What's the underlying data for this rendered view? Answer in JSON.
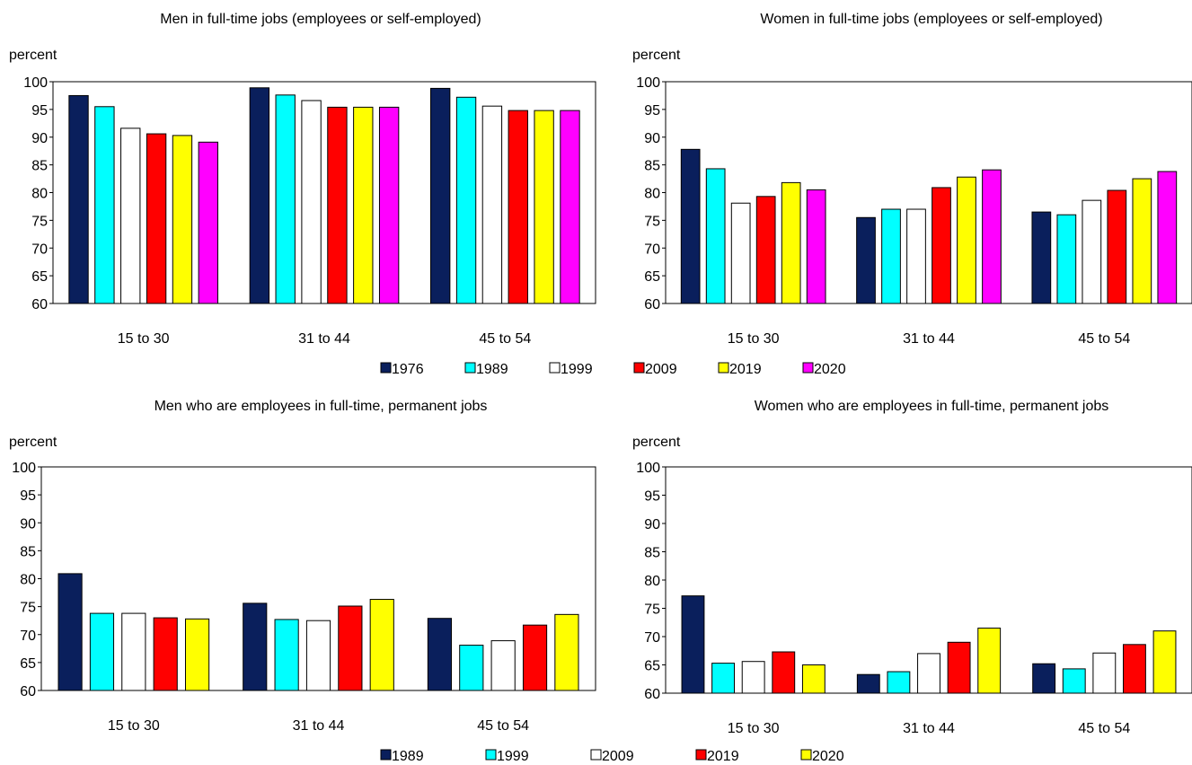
{
  "colors": {
    "1976": "#0a1f5c",
    "1989": "#00ffff",
    "1999": "#ffffff",
    "2009": "#ff0000",
    "2019": "#ffff00",
    "2020": "#ff00ff",
    "outline": "#000000"
  },
  "legend_top": {
    "entries": [
      {
        "label": "1976",
        "color": "#0a1f5c"
      },
      {
        "label": "1989",
        "color": "#00ffff"
      },
      {
        "label": "1999",
        "color": "#ffffff"
      },
      {
        "label": "2009",
        "color": "#ff0000"
      },
      {
        "label": "2019",
        "color": "#ffff00"
      },
      {
        "label": "2020",
        "color": "#ff00ff"
      }
    ]
  },
  "legend_bottom": {
    "entries": [
      {
        "label": "1989",
        "color": "#0a1f5c"
      },
      {
        "label": "1999",
        "color": "#00ffff"
      },
      {
        "label": "2009",
        "color": "#ffffff"
      },
      {
        "label": "2019",
        "color": "#ff0000"
      },
      {
        "label": "2020",
        "color": "#ffff00"
      }
    ]
  },
  "chart_data": [
    {
      "type": "bar",
      "title": "Men in full-time jobs (employees or self-employed)",
      "ylabel": "percent",
      "ylim": [
        60,
        100
      ],
      "yticks": [
        60,
        65,
        70,
        75,
        80,
        85,
        90,
        95,
        100
      ],
      "categories": [
        "15 to 30",
        "31 to 44",
        "45 to 54"
      ],
      "series": [
        {
          "name": "1976",
          "color": "#0a1f5c",
          "values": [
            97.5,
            98.9,
            98.8
          ]
        },
        {
          "name": "1989",
          "color": "#00ffff",
          "values": [
            95.5,
            97.6,
            97.2
          ]
        },
        {
          "name": "1999",
          "color": "#ffffff",
          "values": [
            91.6,
            96.6,
            95.6
          ]
        },
        {
          "name": "2009",
          "color": "#ff0000",
          "values": [
            90.6,
            95.4,
            94.8
          ]
        },
        {
          "name": "2019",
          "color": "#ffff00",
          "values": [
            90.3,
            95.4,
            94.8
          ]
        },
        {
          "name": "2020",
          "color": "#ff00ff",
          "values": [
            89.1,
            95.4,
            94.8
          ]
        }
      ],
      "grid": false
    },
    {
      "type": "bar",
      "title": "Women in full-time jobs (employees or self-employed)",
      "ylabel": "percent",
      "ylim": [
        60,
        100
      ],
      "yticks": [
        60,
        65,
        70,
        75,
        80,
        85,
        90,
        95,
        100
      ],
      "categories": [
        "15 to 30",
        "31 to 44",
        "45 to 54"
      ],
      "series": [
        {
          "name": "1976",
          "color": "#0a1f5c",
          "values": [
            87.8,
            75.5,
            76.5
          ]
        },
        {
          "name": "1989",
          "color": "#00ffff",
          "values": [
            84.3,
            77.0,
            76.0
          ]
        },
        {
          "name": "1999",
          "color": "#ffffff",
          "values": [
            78.1,
            77.0,
            78.6
          ]
        },
        {
          "name": "2009",
          "color": "#ff0000",
          "values": [
            79.3,
            80.9,
            80.4
          ]
        },
        {
          "name": "2019",
          "color": "#ffff00",
          "values": [
            81.8,
            82.8,
            82.5
          ]
        },
        {
          "name": "2020",
          "color": "#ff00ff",
          "values": [
            80.5,
            84.1,
            83.8
          ]
        }
      ],
      "grid": false
    },
    {
      "type": "bar",
      "title": "Men who are employees in full-time, permanent jobs",
      "ylabel": "percent",
      "ylim": [
        60,
        100
      ],
      "yticks": [
        60,
        65,
        70,
        75,
        80,
        85,
        90,
        95,
        100
      ],
      "categories": [
        "15 to 30",
        "31 to 44",
        "45 to 54"
      ],
      "series": [
        {
          "name": "1989",
          "color": "#0a1f5c",
          "values": [
            80.9,
            75.6,
            72.9
          ]
        },
        {
          "name": "1999",
          "color": "#00ffff",
          "values": [
            73.8,
            72.7,
            68.1
          ]
        },
        {
          "name": "2009",
          "color": "#ffffff",
          "values": [
            73.8,
            72.5,
            68.9
          ]
        },
        {
          "name": "2019",
          "color": "#ff0000",
          "values": [
            73.0,
            75.1,
            71.7
          ]
        },
        {
          "name": "2020",
          "color": "#ffff00",
          "values": [
            72.8,
            76.3,
            73.6
          ]
        }
      ],
      "grid": false
    },
    {
      "type": "bar",
      "title": "Women who are employees in full-time, permanent jobs",
      "ylabel": "percent",
      "ylim": [
        60,
        100
      ],
      "yticks": [
        60,
        65,
        70,
        75,
        80,
        85,
        90,
        95,
        100
      ],
      "categories": [
        "15 to 30",
        "31 to 44",
        "45 to 54"
      ],
      "series": [
        {
          "name": "1989",
          "color": "#0a1f5c",
          "values": [
            77.2,
            63.3,
            65.2
          ]
        },
        {
          "name": "1999",
          "color": "#00ffff",
          "values": [
            65.3,
            63.8,
            64.3
          ]
        },
        {
          "name": "2009",
          "color": "#ffffff",
          "values": [
            65.6,
            67.0,
            67.1
          ]
        },
        {
          "name": "2019",
          "color": "#ff0000",
          "values": [
            67.3,
            69.0,
            68.6
          ]
        },
        {
          "name": "2020",
          "color": "#ffff00",
          "values": [
            65.0,
            71.5,
            71.0
          ]
        }
      ],
      "grid": false
    }
  ]
}
